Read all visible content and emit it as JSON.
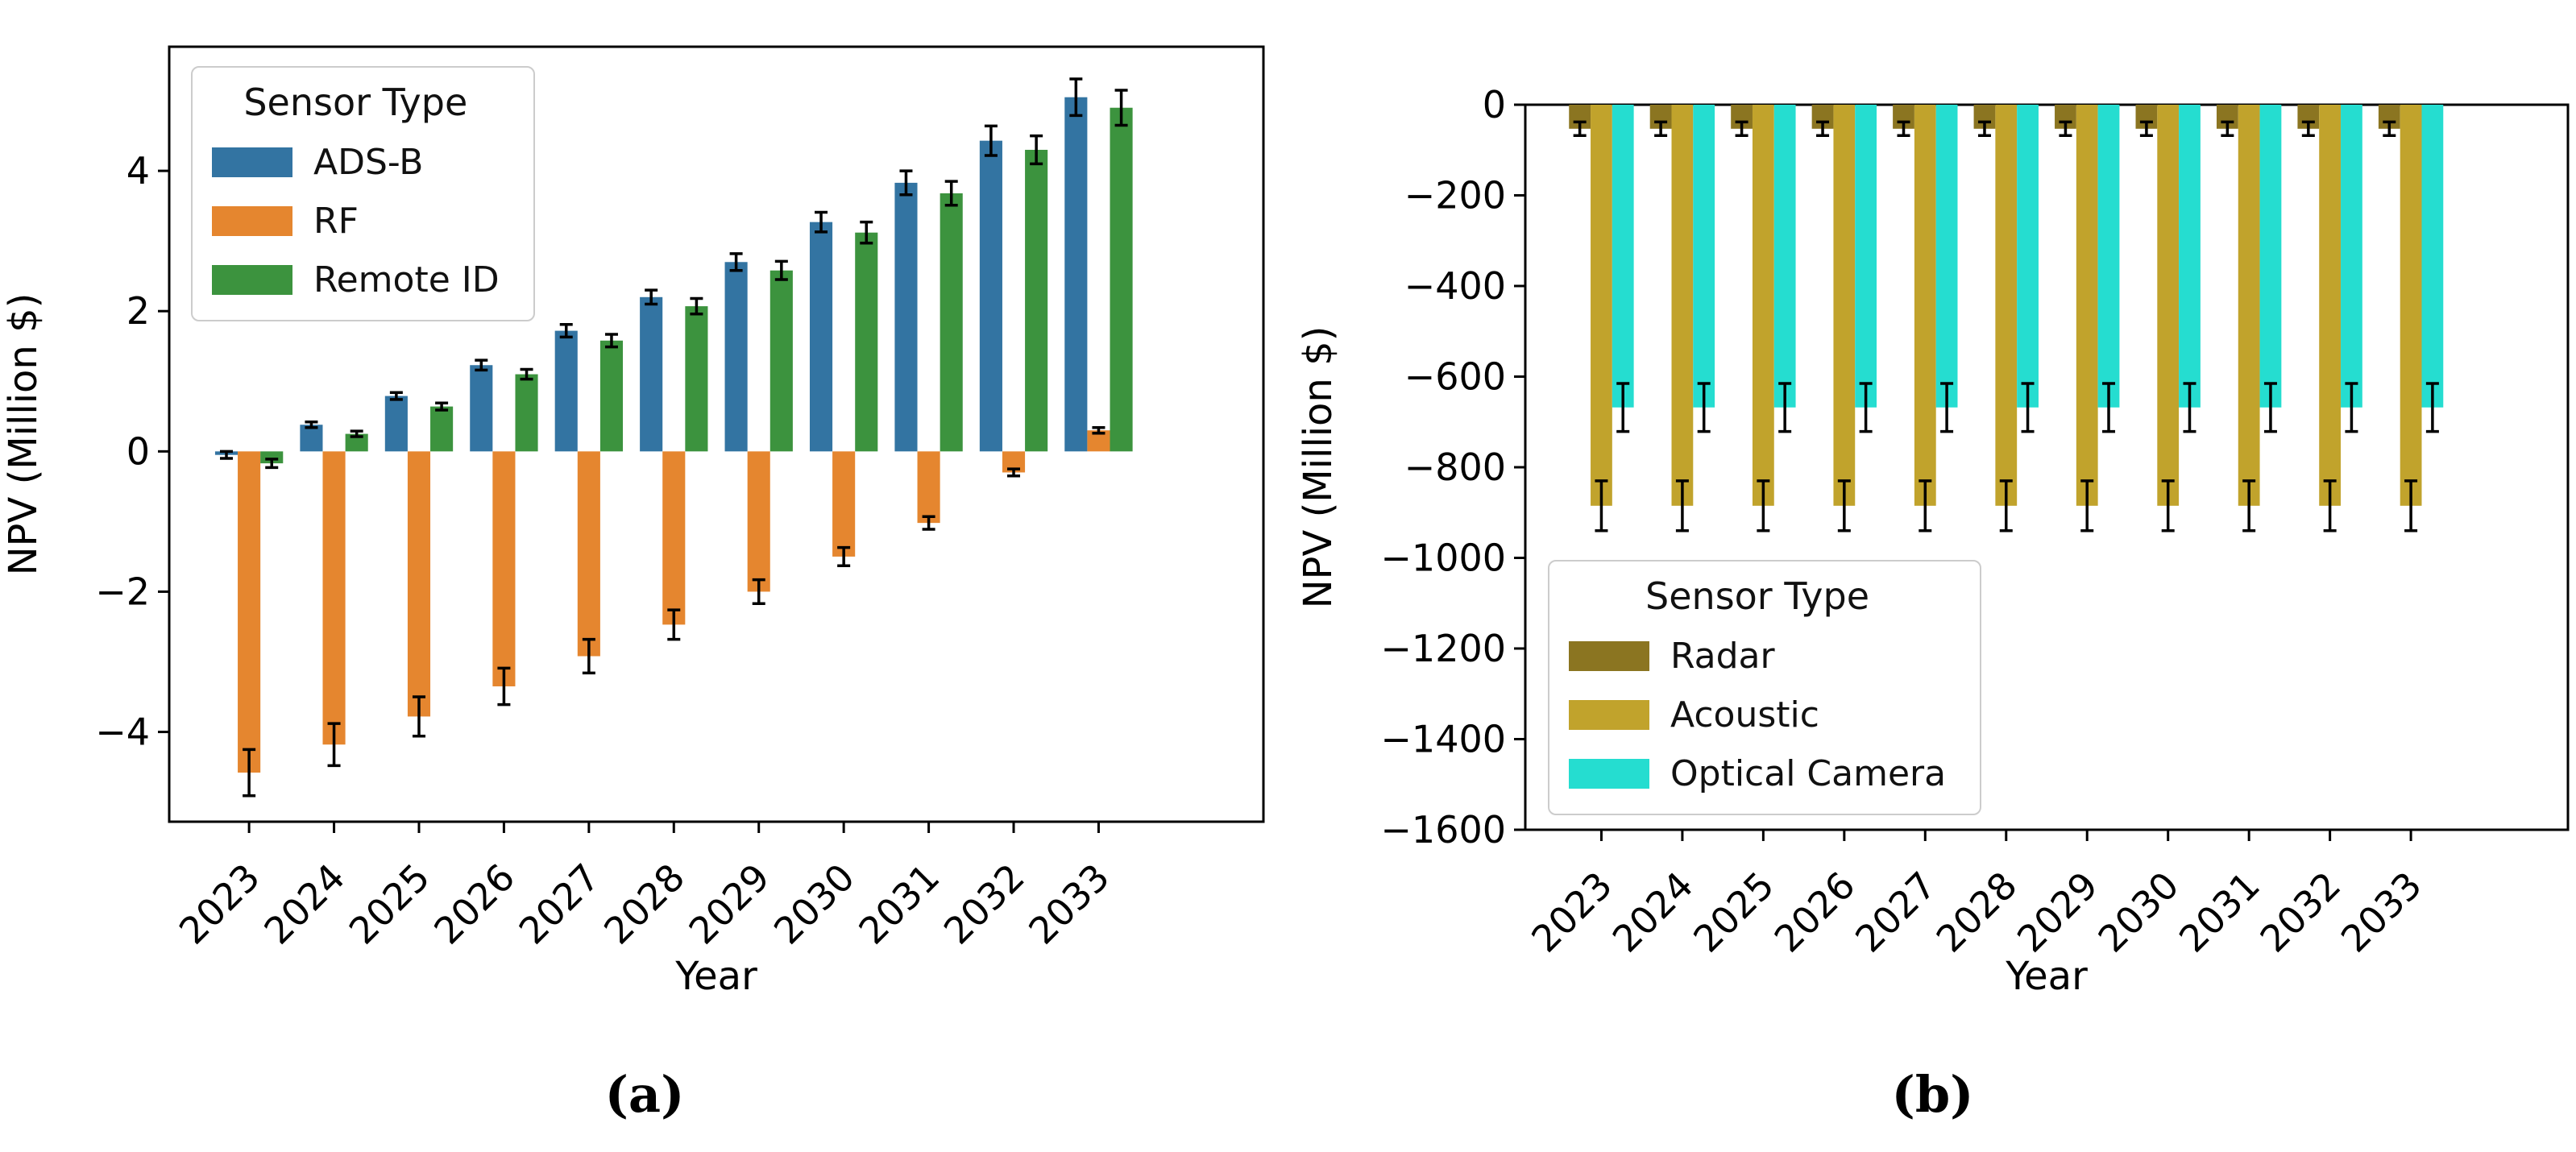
{
  "chart_data": [
    {
      "id": "a",
      "type": "bar",
      "caption": "(a)",
      "title": "",
      "xlabel": "Year",
      "ylabel": "NPV (Million $)",
      "categories": [
        "2023",
        "2024",
        "2025",
        "2026",
        "2027",
        "2028",
        "2029",
        "2030",
        "2031",
        "2032",
        "2033"
      ],
      "ylim": [
        -5.28,
        5.77
      ],
      "yticks": [
        4,
        2,
        0,
        -2,
        -4
      ],
      "ytick_labels": [
        "4",
        "2",
        "0",
        "−2",
        "−4"
      ],
      "grid": false,
      "legend": {
        "title": "Sensor Type",
        "position": "upper-left"
      },
      "series": [
        {
          "name": "ADS-B",
          "color": "#3374a2",
          "values": [
            -0.05,
            0.38,
            0.79,
            1.23,
            1.72,
            2.2,
            2.7,
            3.27,
            3.83,
            4.43,
            5.05
          ],
          "errors": [
            0.05,
            0.04,
            0.05,
            0.07,
            0.09,
            0.1,
            0.12,
            0.14,
            0.17,
            0.21,
            0.26
          ]
        },
        {
          "name": "RF",
          "color": "#e5862f",
          "values": [
            -4.58,
            -4.18,
            -3.78,
            -3.35,
            -2.92,
            -2.47,
            -2.0,
            -1.5,
            -1.02,
            -0.3,
            0.3
          ],
          "errors": [
            0.33,
            0.3,
            0.28,
            0.26,
            0.24,
            0.21,
            0.17,
            0.13,
            0.09,
            0.05,
            0.04
          ]
        },
        {
          "name": "Remote ID",
          "color": "#3c933e",
          "values": [
            -0.17,
            0.25,
            0.64,
            1.1,
            1.58,
            2.07,
            2.58,
            3.12,
            3.68,
            4.3,
            4.9
          ],
          "errors": [
            0.06,
            0.04,
            0.05,
            0.07,
            0.09,
            0.11,
            0.13,
            0.15,
            0.17,
            0.2,
            0.25
          ]
        }
      ]
    },
    {
      "id": "b",
      "type": "bar",
      "caption": "(b)",
      "title": "",
      "xlabel": "Year",
      "ylabel": "NPV (Million $)",
      "categories": [
        "2023",
        "2024",
        "2025",
        "2026",
        "2027",
        "2028",
        "2029",
        "2030",
        "2031",
        "2032",
        "2033"
      ],
      "ylim": [
        -1600,
        0
      ],
      "yticks": [
        0,
        -200,
        -400,
        -600,
        -800,
        -1000,
        -1200,
        -1400,
        -1600
      ],
      "ytick_labels": [
        "0",
        "−200",
        "−400",
        "−600",
        "−800",
        "−1000",
        "−1200",
        "−1400",
        "−1600"
      ],
      "grid": false,
      "legend": {
        "title": "Sensor Type",
        "position": "lower-left"
      },
      "series": [
        {
          "name": "Radar",
          "color": "#8b7521",
          "values": [
            -53,
            -53,
            -53,
            -53,
            -53,
            -53,
            -53,
            -53,
            -53,
            -53,
            -53
          ],
          "errors": [
            15,
            15,
            15,
            15,
            15,
            15,
            15,
            15,
            15,
            15,
            15
          ]
        },
        {
          "name": "Acoustic",
          "color": "#c1a32c",
          "values": [
            -885,
            -885,
            -885,
            -885,
            -885,
            -885,
            -885,
            -885,
            -885,
            -885,
            -885
          ],
          "errors": [
            55,
            55,
            55,
            55,
            55,
            55,
            55,
            55,
            55,
            55,
            55
          ]
        },
        {
          "name": "Optical Camera",
          "color": "#25ddd0",
          "values": [
            -668,
            -668,
            -668,
            -668,
            -668,
            -668,
            -668,
            -668,
            -668,
            -668,
            -668
          ],
          "errors": [
            53,
            53,
            53,
            53,
            53,
            53,
            53,
            53,
            53,
            53,
            53
          ]
        }
      ]
    }
  ]
}
